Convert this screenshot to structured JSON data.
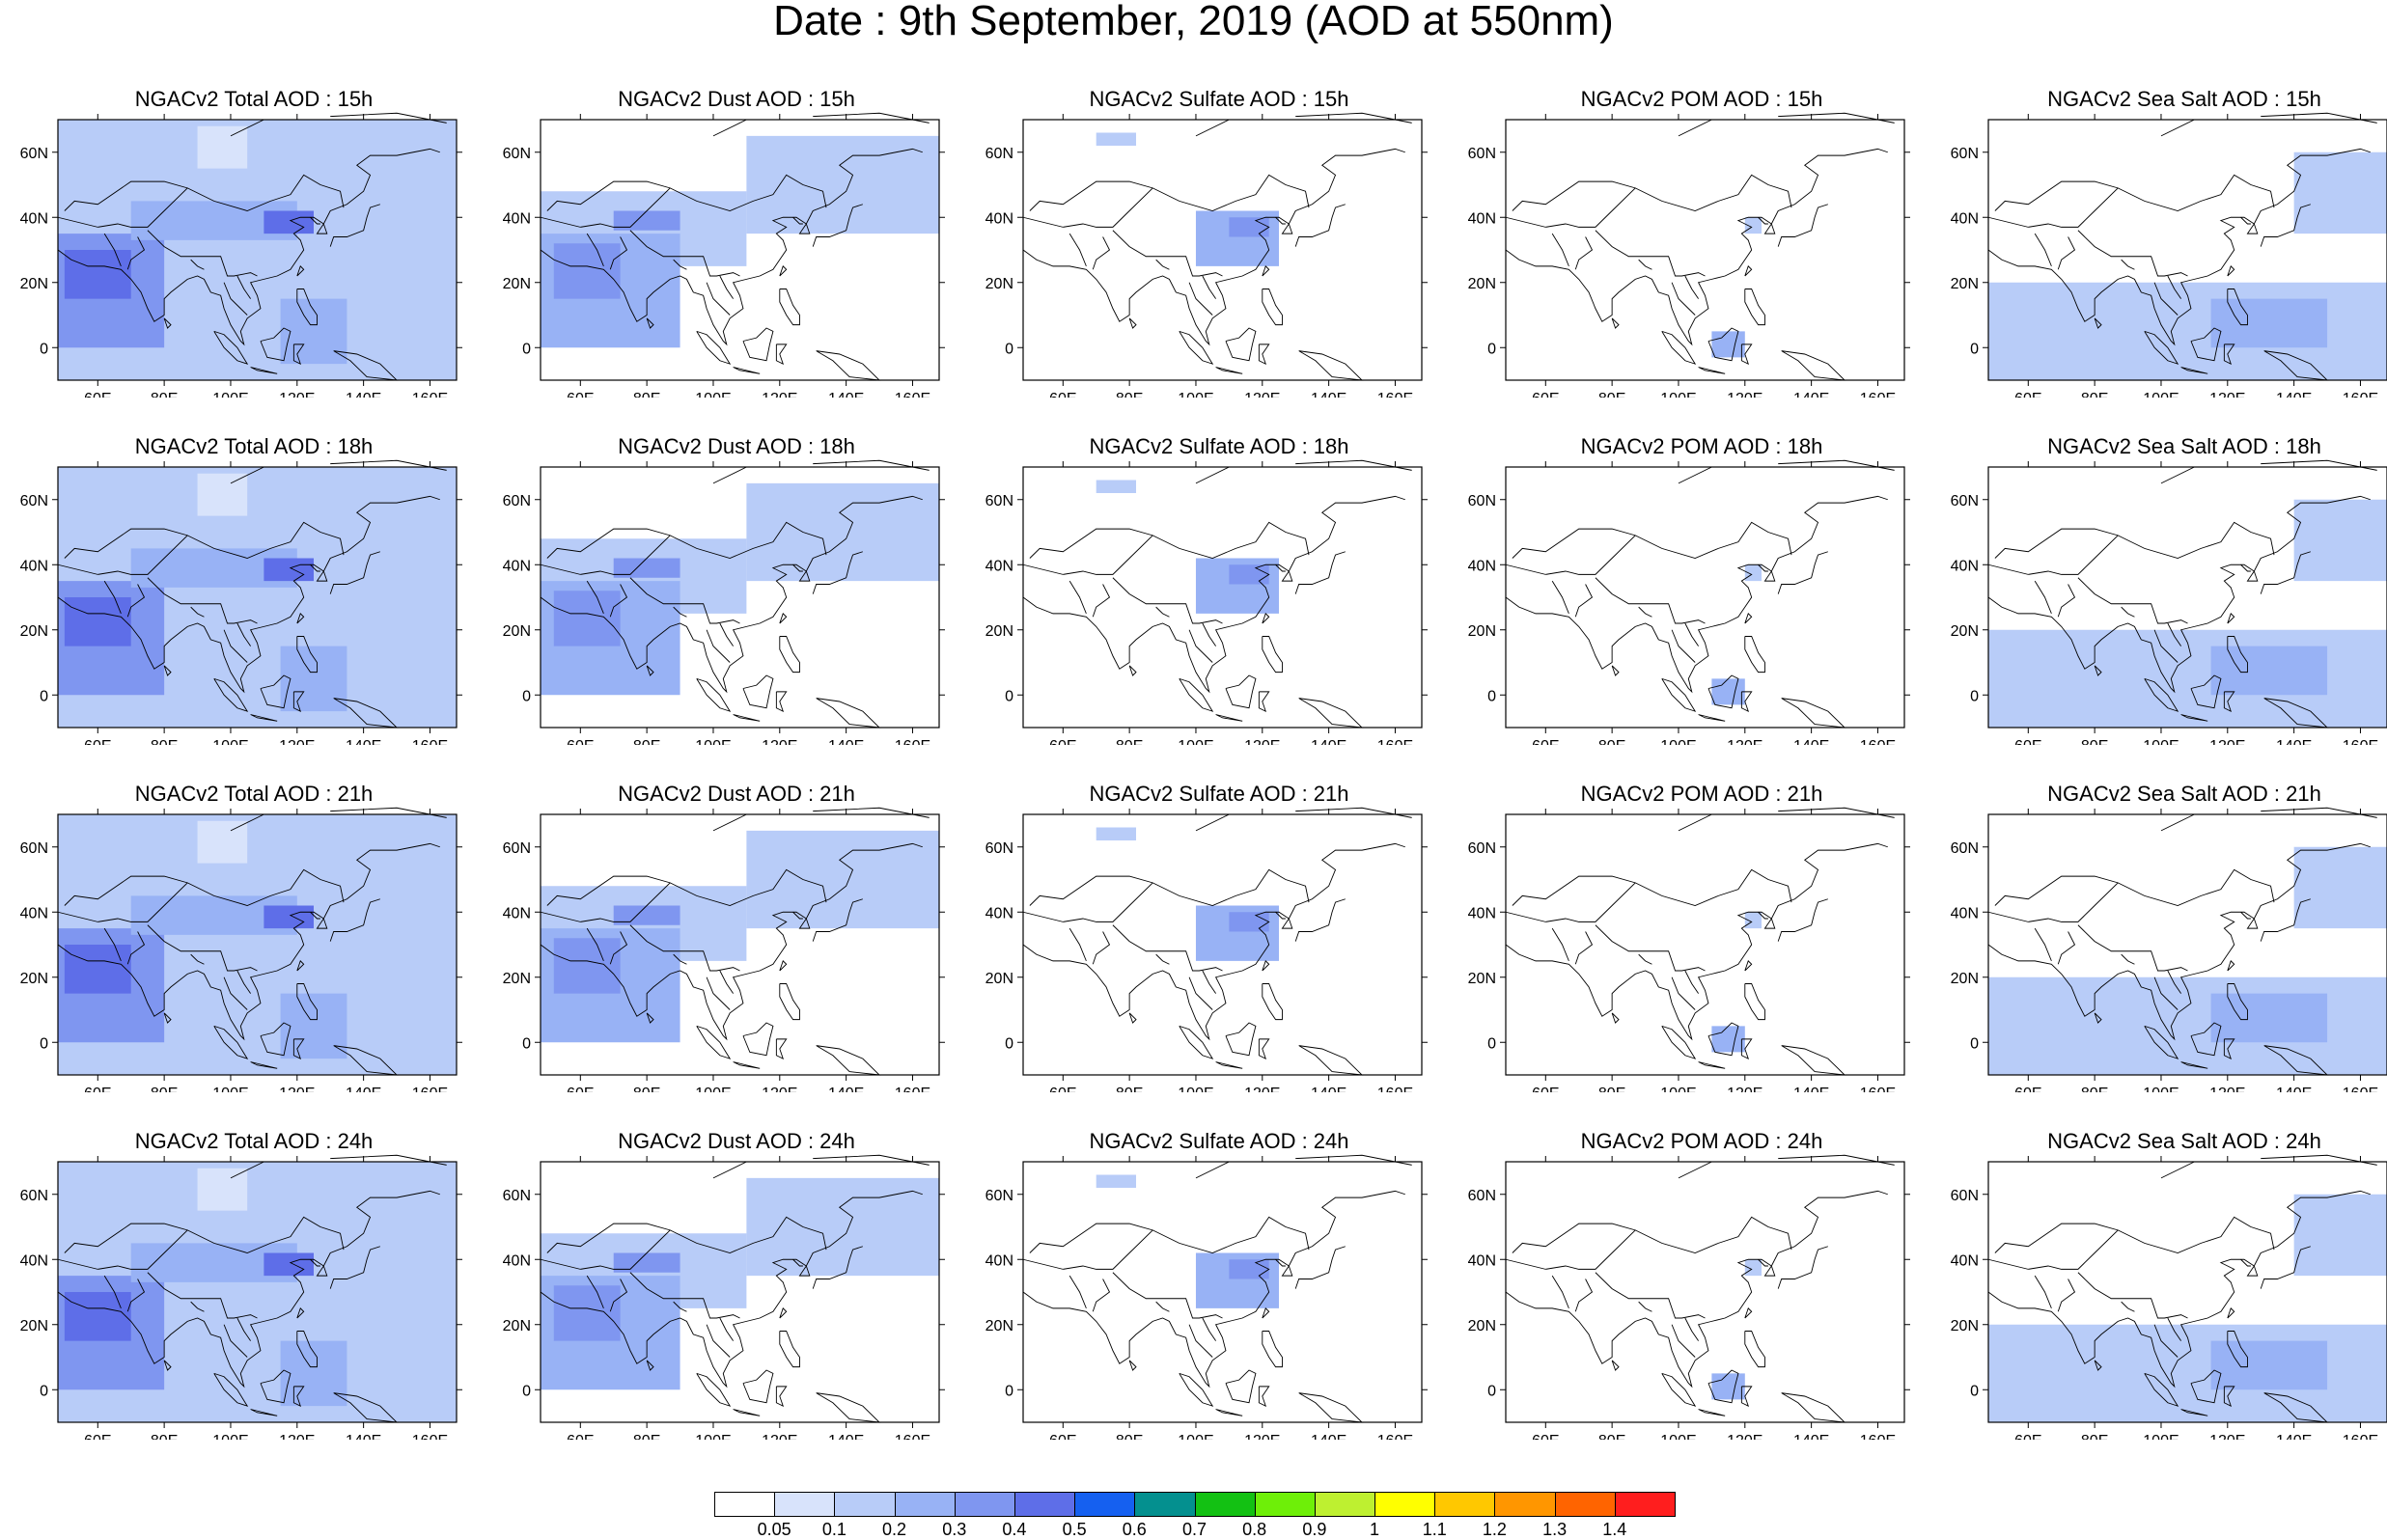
{
  "title": "Date : 9th September, 2019 (AOD at 550nm)",
  "latitude_ticks": [
    "60N",
    "40N",
    "20N",
    "0"
  ],
  "longitude_ticks": [
    "60E",
    "80E",
    "100E",
    "120E",
    "140E",
    "160E"
  ],
  "map_extent": {
    "lon": [
      48,
      168
    ],
    "lat": [
      -10,
      70
    ]
  },
  "columns": [
    {
      "id": "total",
      "name": "Total"
    },
    {
      "id": "dust",
      "name": "Dust"
    },
    {
      "id": "sulfate",
      "name": "Sulfate"
    },
    {
      "id": "pom",
      "name": "POM"
    },
    {
      "id": "seasalt",
      "name": "Sea Salt"
    }
  ],
  "rows": [
    {
      "hour": "15h",
      "titles": [
        "NGACv2 Total AOD : 15h",
        "NGACv2 Dust AOD : 15h",
        "NGACv2 Sulfate AOD : 15h",
        "NGACv2 POM AOD : 15h",
        "NGACv2 Sea Salt AOD : 15h"
      ]
    },
    {
      "hour": "18h",
      "titles": [
        "NGACv2 Total AOD : 18h",
        "NGACv2 Dust AOD : 18h",
        "NGACv2 Sulfate AOD : 18h",
        "NGACv2 POM AOD : 18h",
        "NGACv2 Sea Salt AOD : 18h"
      ]
    },
    {
      "hour": "21h",
      "titles": [
        "NGACv2 Total AOD : 21h",
        "NGACv2 Dust AOD : 21h",
        "NGACv2 Sulfate AOD : 21h",
        "NGACv2 POM AOD : 21h",
        "NGACv2 Sea Salt AOD : 21h"
      ]
    },
    {
      "hour": "24h",
      "titles": [
        "NGACv2 Total AOD : 24h",
        "NGACv2 Dust AOD : 24h",
        "NGACv2 Sulfate AOD : 24h",
        "NGACv2 POM AOD : 24h",
        "NGACv2 Sea Salt  AOD : 24h"
      ]
    }
  ],
  "colorbar": {
    "labels": [
      "0.05",
      "0.1",
      "0.2",
      "0.3",
      "0.4",
      "0.5",
      "0.6",
      "0.7",
      "0.8",
      "0.9",
      "1",
      "1.1",
      "1.2",
      "1.3",
      "1.4"
    ],
    "colors": [
      "#ffffff",
      "#d8e3fb",
      "#b8ccf8",
      "#98b2f5",
      "#7f96f0",
      "#5e6ee8",
      "#1560f0",
      "#04908f",
      "#13c113",
      "#6eef08",
      "#bef030",
      "#ffff00",
      "#ffc800",
      "#ff9600",
      "#ff6400",
      "#ff1e1e"
    ]
  },
  "aod_fields": {
    "total": [
      {
        "lon": [
          48,
          168
        ],
        "lat": [
          -10,
          70
        ],
        "level": 1
      },
      {
        "lon": [
          48,
          80
        ],
        "lat": [
          0,
          35
        ],
        "level": 3
      },
      {
        "lon": [
          50,
          70
        ],
        "lat": [
          15,
          30
        ],
        "level": 4
      },
      {
        "lon": [
          70,
          120
        ],
        "lat": [
          33,
          45
        ],
        "level": 2
      },
      {
        "lon": [
          110,
          125
        ],
        "lat": [
          35,
          42
        ],
        "level": 4
      },
      {
        "lon": [
          115,
          135
        ],
        "lat": [
          -5,
          15
        ],
        "level": 2
      },
      {
        "lon": [
          140,
          168
        ],
        "lat": [
          50,
          68
        ],
        "level": 1
      },
      {
        "lon": [
          90,
          105
        ],
        "lat": [
          55,
          68
        ],
        "level": 0
      }
    ],
    "dust": [
      {
        "lon": [
          48,
          110
        ],
        "lat": [
          25,
          48
        ],
        "level": 1
      },
      {
        "lon": [
          48,
          90
        ],
        "lat": [
          0,
          35
        ],
        "level": 2
      },
      {
        "lon": [
          52,
          72
        ],
        "lat": [
          15,
          32
        ],
        "level": 3
      },
      {
        "lon": [
          70,
          90
        ],
        "lat": [
          36,
          42
        ],
        "level": 3
      },
      {
        "lon": [
          110,
          168
        ],
        "lat": [
          35,
          65
        ],
        "level": 1
      }
    ],
    "sulfate": [
      {
        "lon": [
          100,
          125
        ],
        "lat": [
          25,
          42
        ],
        "level": 2
      },
      {
        "lon": [
          110,
          122
        ],
        "lat": [
          34,
          40
        ],
        "level": 3
      },
      {
        "lon": [
          70,
          82
        ],
        "lat": [
          62,
          66
        ],
        "level": 1
      }
    ],
    "pom": [
      {
        "lon": [
          110,
          120
        ],
        "lat": [
          -3,
          5
        ],
        "level": 2
      },
      {
        "lon": [
          120,
          125
        ],
        "lat": [
          35,
          40
        ],
        "level": 1
      }
    ],
    "seasalt": [
      {
        "lon": [
          48,
          168
        ],
        "lat": [
          -10,
          20
        ],
        "level": 1
      },
      {
        "lon": [
          115,
          150
        ],
        "lat": [
          0,
          15
        ],
        "level": 2
      },
      {
        "lon": [
          140,
          168
        ],
        "lat": [
          35,
          60
        ],
        "level": 1
      }
    ]
  }
}
